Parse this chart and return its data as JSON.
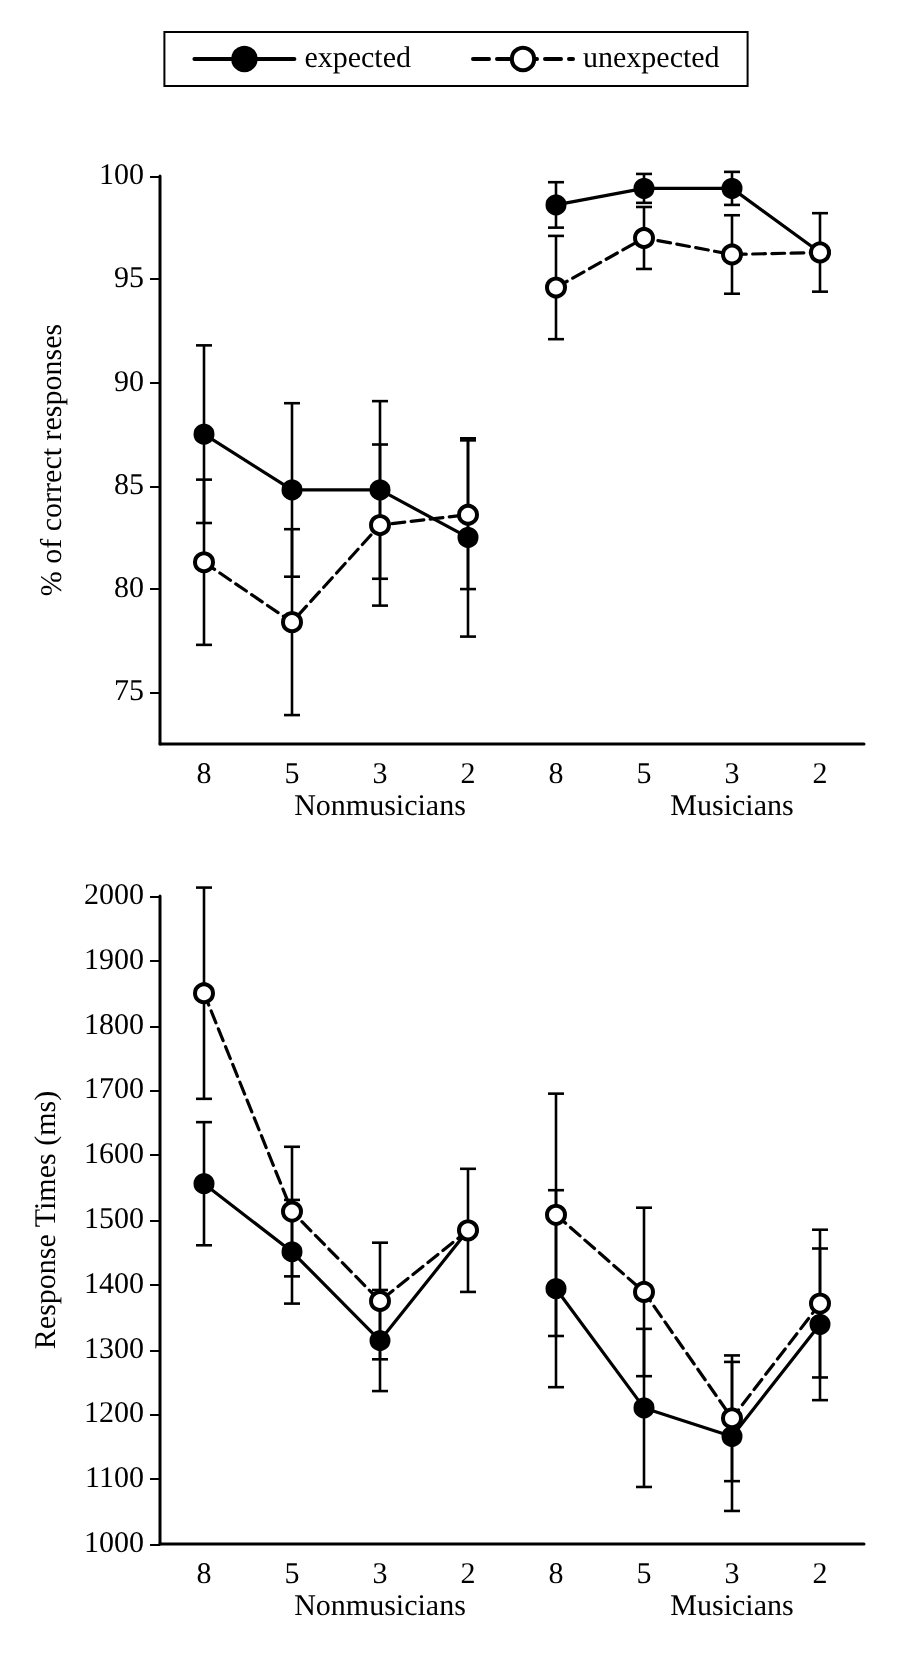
{
  "chart_data": [
    {
      "type": "line",
      "ylabel": "% of correct responses",
      "categories": [
        "8",
        "5",
        "3",
        "2",
        "8",
        "5",
        "3",
        "2"
      ],
      "annotations": [
        "Nonmusicians",
        "Musicians"
      ],
      "ylim": [
        72.5,
        100
      ],
      "yticks": [
        75,
        80,
        85,
        90,
        95,
        100
      ],
      "legend": "top",
      "marker": "circle",
      "grid": false,
      "series": [
        {
          "name": "expected",
          "color": "#000000",
          "line_style": "solid",
          "values": [
            87.5,
            84.8,
            84.8,
            82.5,
            null,
            null,
            null,
            null
          ],
          "errors": [
            4.3,
            4.2,
            4.3,
            4.8,
            null,
            null,
            null,
            null
          ]
        },
        {
          "name": "unexpected",
          "color": "#000000",
          "line_style": "dashed",
          "values": [
            81.3,
            78.4,
            83.1,
            83.6,
            null,
            null,
            null,
            null
          ],
          "errors": [
            4.0,
            4.5,
            3.9,
            3.6,
            null,
            null,
            null,
            null
          ]
        },
        {
          "color": "#000000",
          "line_style": "solid",
          "values": [
            null,
            null,
            null,
            null,
            98.6,
            99.4,
            99.4,
            96.3
          ],
          "errors": [
            null,
            null,
            null,
            null,
            1.1,
            0.7,
            0.8,
            1.9
          ]
        },
        {
          "color": "#000000",
          "line_style": "dashed",
          "values": [
            null,
            null,
            null,
            null,
            94.6,
            97.0,
            96.2,
            96.3
          ],
          "errors": [
            null,
            null,
            null,
            null,
            2.5,
            1.5,
            1.9,
            null
          ]
        }
      ]
    },
    {
      "type": "line",
      "ylabel": "Response Times (ms)",
      "categories": [
        "8",
        "5",
        "3",
        "2",
        "8",
        "5",
        "3",
        "2"
      ],
      "annotations": [
        "Nonmusicians",
        "Musicians"
      ],
      "ylim": [
        1000,
        2000
      ],
      "yticks": [
        1000,
        1100,
        1200,
        1300,
        1400,
        1500,
        1600,
        1700,
        1800,
        1900,
        2000
      ],
      "marker": "circle",
      "grid": false,
      "series": [
        {
          "color": "#000000",
          "line_style": "solid",
          "values": [
            1556,
            1451,
            1314,
            1484,
            null,
            null,
            null,
            null
          ],
          "errors": [
            95,
            80,
            78,
            95,
            null,
            null,
            null,
            null
          ]
        },
        {
          "color": "#000000",
          "line_style": "dashed",
          "values": [
            1850,
            1513,
            1375,
            1484,
            null,
            null,
            null,
            null
          ],
          "errors": [
            163,
            100,
            90,
            null,
            null,
            null,
            null,
            null
          ]
        },
        {
          "color": "#000000",
          "line_style": "solid",
          "values": [
            null,
            null,
            null,
            null,
            1394,
            1210,
            1166,
            1339
          ],
          "errors": [
            null,
            null,
            null,
            null,
            152,
            122,
            115,
            117
          ]
        },
        {
          "color": "#000000",
          "line_style": "dashed",
          "values": [
            null,
            null,
            null,
            null,
            1508,
            1389,
            1194,
            1371
          ],
          "errors": [
            null,
            null,
            null,
            null,
            187,
            130,
            97,
            114
          ]
        }
      ]
    }
  ]
}
